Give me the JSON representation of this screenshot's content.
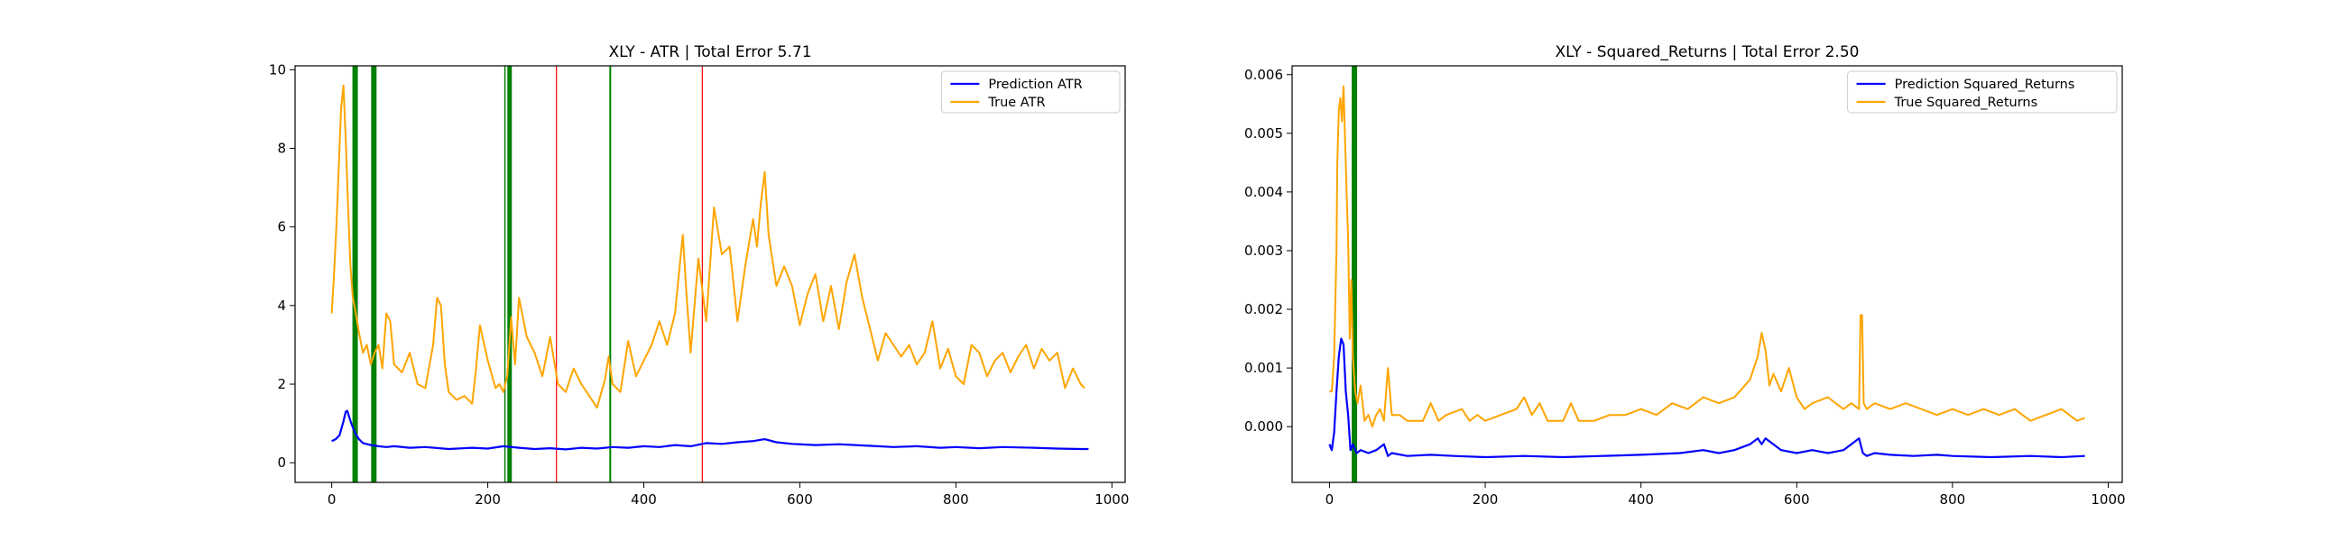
{
  "chart_data": [
    {
      "type": "line",
      "title": "XLY - ATR | Total Error 5.71",
      "xlabel": "",
      "ylabel": "",
      "xlim": [
        -47,
        1017
      ],
      "ylim": [
        -0.5,
        10.1
      ],
      "xticks": [
        0,
        200,
        400,
        600,
        800,
        1000
      ],
      "yticks": [
        0,
        2,
        4,
        6,
        8,
        10
      ],
      "ytick_decimals": 0,
      "grid": false,
      "legend": "top-right",
      "series": [
        {
          "name": "Prediction ATR",
          "color": "#0000ff",
          "x": [
            0,
            5,
            10,
            15,
            18,
            20,
            25,
            30,
            35,
            40,
            50,
            60,
            70,
            80,
            100,
            120,
            150,
            180,
            200,
            220,
            240,
            260,
            280,
            300,
            320,
            340,
            360,
            380,
            400,
            420,
            440,
            460,
            480,
            500,
            520,
            540,
            555,
            570,
            590,
            620,
            650,
            680,
            700,
            720,
            750,
            780,
            800,
            830,
            860,
            900,
            930,
            960,
            970
          ],
          "y": [
            0.55,
            0.6,
            0.7,
            1.05,
            1.3,
            1.32,
            1.0,
            0.75,
            0.6,
            0.5,
            0.45,
            0.42,
            0.4,
            0.42,
            0.38,
            0.4,
            0.35,
            0.38,
            0.36,
            0.42,
            0.38,
            0.35,
            0.37,
            0.34,
            0.38,
            0.36,
            0.4,
            0.38,
            0.42,
            0.4,
            0.45,
            0.42,
            0.5,
            0.48,
            0.52,
            0.55,
            0.6,
            0.52,
            0.48,
            0.45,
            0.47,
            0.44,
            0.42,
            0.4,
            0.42,
            0.38,
            0.4,
            0.37,
            0.4,
            0.38,
            0.36,
            0.35,
            0.35
          ]
        },
        {
          "name": "True ATR",
          "color": "#ffa500",
          "x": [
            0,
            3,
            6,
            9,
            12,
            15,
            18,
            21,
            24,
            27,
            30,
            35,
            40,
            45,
            50,
            55,
            60,
            65,
            70,
            75,
            80,
            90,
            100,
            110,
            120,
            130,
            135,
            140,
            145,
            150,
            160,
            170,
            180,
            185,
            190,
            200,
            210,
            215,
            220,
            225,
            230,
            235,
            240,
            250,
            260,
            270,
            280,
            290,
            300,
            310,
            320,
            330,
            340,
            350,
            355,
            360,
            370,
            380,
            390,
            400,
            410,
            420,
            430,
            440,
            445,
            450,
            455,
            460,
            470,
            480,
            490,
            500,
            510,
            520,
            530,
            540,
            545,
            550,
            555,
            560,
            570,
            580,
            590,
            600,
            610,
            620,
            630,
            640,
            650,
            660,
            670,
            680,
            690,
            700,
            710,
            720,
            730,
            740,
            750,
            760,
            770,
            780,
            790,
            800,
            810,
            820,
            830,
            840,
            850,
            860,
            870,
            880,
            890,
            900,
            910,
            920,
            930,
            940,
            950,
            960,
            965
          ],
          "y": [
            3.8,
            4.8,
            6.0,
            7.5,
            9.0,
            9.6,
            8.2,
            6.5,
            5.0,
            4.2,
            3.9,
            3.3,
            2.8,
            3.0,
            2.5,
            2.8,
            3.0,
            2.4,
            3.8,
            3.6,
            2.5,
            2.3,
            2.8,
            2.0,
            1.9,
            3.0,
            4.2,
            4.0,
            2.5,
            1.8,
            1.6,
            1.7,
            1.5,
            2.4,
            3.5,
            2.6,
            1.9,
            2.0,
            1.8,
            2.2,
            3.7,
            2.5,
            4.2,
            3.2,
            2.8,
            2.2,
            3.2,
            2.0,
            1.8,
            2.4,
            2.0,
            1.7,
            1.4,
            2.1,
            2.7,
            2.0,
            1.8,
            3.1,
            2.2,
            2.6,
            3.0,
            3.6,
            3.0,
            3.8,
            4.8,
            5.8,
            4.2,
            2.8,
            5.2,
            3.6,
            6.5,
            5.3,
            5.5,
            3.6,
            5.0,
            6.2,
            5.5,
            6.6,
            7.4,
            5.8,
            4.5,
            5.0,
            4.5,
            3.5,
            4.3,
            4.8,
            3.6,
            4.5,
            3.4,
            4.6,
            5.3,
            4.2,
            3.4,
            2.6,
            3.3,
            3.0,
            2.7,
            3.0,
            2.5,
            2.8,
            3.6,
            2.4,
            2.9,
            2.2,
            2.0,
            3.0,
            2.8,
            2.2,
            2.6,
            2.8,
            2.3,
            2.7,
            3.0,
            2.4,
            2.9,
            2.6,
            2.8,
            1.9,
            2.4,
            2.0,
            1.9
          ]
        }
      ],
      "vlines": [
        {
          "x": 30,
          "color": "#008000",
          "width": 6
        },
        {
          "x": 54,
          "color": "#008000",
          "width": 6
        },
        {
          "x": 222,
          "color": "#008000",
          "width": 1.5
        },
        {
          "x": 228,
          "color": "#008000",
          "width": 5
        },
        {
          "x": 288,
          "color": "#ff0000",
          "width": 1.2
        },
        {
          "x": 357,
          "color": "#008000",
          "width": 2
        },
        {
          "x": 475,
          "color": "#ff0000",
          "width": 1.2
        }
      ]
    },
    {
      "type": "line",
      "title": "XLY - Squared_Returns | Total Error 2.50",
      "xlabel": "",
      "ylabel": "",
      "xlim": [
        -48,
        1018
      ],
      "ylim": [
        -0.00095,
        0.00615
      ],
      "xticks": [
        0,
        200,
        400,
        600,
        800,
        1000
      ],
      "yticks": [
        0.0,
        0.001,
        0.002,
        0.003,
        0.004,
        0.005,
        0.006
      ],
      "ytick_decimals": 3,
      "grid": false,
      "legend": "top-right",
      "series": [
        {
          "name": "Prediction Squared_Returns",
          "color": "#0000ff",
          "x": [
            0,
            3,
            6,
            9,
            12,
            15,
            18,
            21,
            24,
            27,
            30,
            35,
            40,
            50,
            60,
            70,
            75,
            80,
            100,
            130,
            160,
            200,
            250,
            300,
            350,
            400,
            450,
            480,
            500,
            520,
            540,
            550,
            555,
            560,
            570,
            580,
            600,
            620,
            640,
            660,
            680,
            682,
            685,
            690,
            700,
            720,
            750,
            780,
            800,
            850,
            900,
            940,
            970
          ],
          "y": [
            -0.0003,
            -0.0004,
            -0.0001,
            0.0006,
            0.0012,
            0.0015,
            0.0014,
            0.0006,
            0.0002,
            -0.0004,
            -0.0003,
            -0.00045,
            -0.0004,
            -0.00045,
            -0.0004,
            -0.0003,
            -0.0005,
            -0.00045,
            -0.0005,
            -0.00048,
            -0.0005,
            -0.00052,
            -0.0005,
            -0.00052,
            -0.0005,
            -0.00048,
            -0.00045,
            -0.0004,
            -0.00045,
            -0.0004,
            -0.0003,
            -0.0002,
            -0.0003,
            -0.0002,
            -0.0003,
            -0.0004,
            -0.00045,
            -0.0004,
            -0.00045,
            -0.0004,
            -0.0002,
            -0.0003,
            -0.00045,
            -0.0005,
            -0.00045,
            -0.00048,
            -0.0005,
            -0.00048,
            -0.0005,
            -0.00052,
            -0.0005,
            -0.00052,
            -0.0005
          ]
        },
        {
          "name": "True Squared_Returns",
          "color": "#ffa500",
          "x": [
            0,
            3,
            6,
            9,
            10,
            12,
            14,
            16,
            18,
            20,
            22,
            24,
            26,
            28,
            30,
            33,
            36,
            40,
            45,
            50,
            55,
            60,
            65,
            70,
            75,
            80,
            90,
            100,
            120,
            130,
            140,
            150,
            170,
            180,
            190,
            200,
            220,
            240,
            250,
            260,
            270,
            280,
            300,
            310,
            320,
            340,
            360,
            380,
            400,
            420,
            440,
            460,
            480,
            500,
            520,
            540,
            550,
            555,
            560,
            565,
            570,
            580,
            590,
            600,
            610,
            620,
            640,
            660,
            670,
            680,
            682,
            684,
            686,
            690,
            700,
            720,
            740,
            760,
            780,
            800,
            820,
            840,
            860,
            880,
            900,
            920,
            940,
            960,
            970
          ],
          "y": [
            0.0006,
            0.0006,
            0.0012,
            0.003,
            0.0045,
            0.0054,
            0.0056,
            0.0052,
            0.0058,
            0.0049,
            0.004,
            0.0032,
            0.0015,
            0.0025,
            0.0012,
            0.0006,
            0.0004,
            0.0007,
            0.0001,
            0.0002,
            0.0,
            0.0002,
            0.0003,
            0.0001,
            0.001,
            0.0002,
            0.0002,
            0.0001,
            0.0001,
            0.0004,
            0.0001,
            0.0002,
            0.0003,
            0.0001,
            0.0002,
            0.0001,
            0.0002,
            0.0003,
            0.0005,
            0.0002,
            0.0004,
            0.0001,
            0.0001,
            0.0004,
            0.0001,
            0.0001,
            0.0002,
            0.0002,
            0.0003,
            0.0002,
            0.0004,
            0.0003,
            0.0005,
            0.0004,
            0.0005,
            0.0008,
            0.0012,
            0.0016,
            0.0013,
            0.0007,
            0.0009,
            0.0006,
            0.001,
            0.0005,
            0.0003,
            0.0004,
            0.0005,
            0.0003,
            0.0004,
            0.0003,
            0.0019,
            0.0019,
            0.0004,
            0.0003,
            0.0004,
            0.0003,
            0.0004,
            0.0003,
            0.0002,
            0.0003,
            0.0002,
            0.0003,
            0.0002,
            0.0003,
            0.0001,
            0.0002,
            0.0003,
            0.0001,
            0.00015
          ]
        }
      ],
      "vlines": [
        {
          "x": 32,
          "color": "#008000",
          "width": 6
        }
      ]
    }
  ]
}
